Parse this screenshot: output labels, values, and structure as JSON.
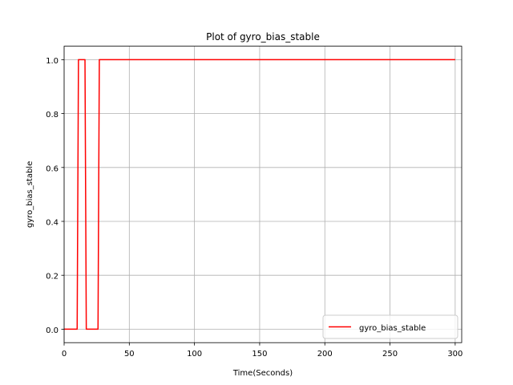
{
  "chart_data": {
    "type": "line",
    "title": "Plot of gyro_bias_stable",
    "xlabel": "Time(Seconds)",
    "ylabel": "gyro_bias_stable",
    "xlim": [
      0,
      305
    ],
    "ylim": [
      -0.05,
      1.05
    ],
    "xticks": [
      0,
      50,
      100,
      150,
      200,
      250,
      300
    ],
    "yticks": [
      0.0,
      0.2,
      0.4,
      0.6,
      0.8,
      1.0
    ],
    "xtick_labels": [
      "0",
      "50",
      "100",
      "150",
      "200",
      "250",
      "300"
    ],
    "ytick_labels": [
      "0.0",
      "0.2",
      "0.4",
      "0.6",
      "0.8",
      "1.0"
    ],
    "grid": true,
    "legend_position": "lower-right",
    "series": [
      {
        "name": "gyro_bias_stable",
        "color": "#ff0000",
        "x": [
          0,
          10,
          11,
          16,
          17,
          26,
          27,
          300
        ],
        "y": [
          0,
          0,
          1,
          1,
          0,
          0,
          1,
          1
        ]
      }
    ]
  }
}
